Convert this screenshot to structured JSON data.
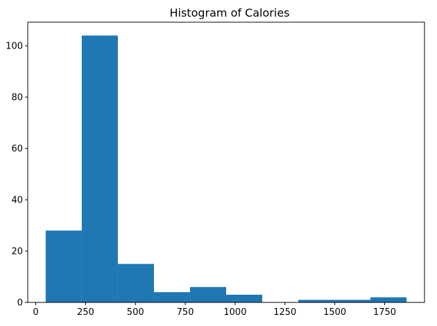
{
  "chart_data": {
    "type": "bar",
    "title": "Histogram of Calories",
    "xlabel": "",
    "ylabel": "",
    "xlim": [
      -40,
      1950
    ],
    "ylim": [
      0,
      109.2
    ],
    "x_ticks": [
      0,
      250,
      500,
      750,
      1000,
      1250,
      1500,
      1750
    ],
    "x_tick_labels": [
      "0",
      "250",
      "500",
      "750",
      "1000",
      "1250",
      "1500",
      "1750"
    ],
    "y_ticks": [
      0,
      20,
      40,
      60,
      80,
      100
    ],
    "y_tick_labels": [
      "0",
      "20",
      "40",
      "60",
      "80",
      "100"
    ],
    "bin_edges": [
      50,
      231,
      412,
      593,
      774,
      955,
      1136,
      1317,
      1498,
      1679,
      1860
    ],
    "counts": [
      28,
      104,
      15,
      4,
      6,
      3,
      0,
      1,
      1,
      2
    ],
    "bar_color": "#1f77b4",
    "grid": false
  }
}
